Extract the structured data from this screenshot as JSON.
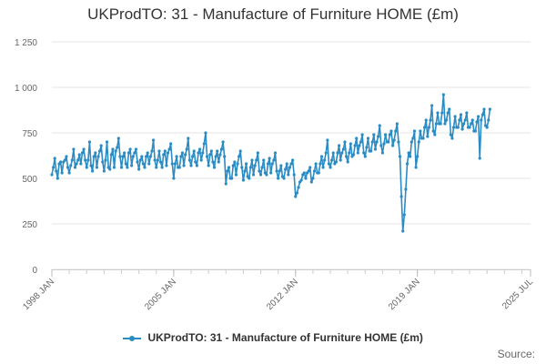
{
  "chart_data": {
    "type": "line",
    "title": "UKProdTO: 31 - Manufacture of Furniture HOME (£m)",
    "xlabel": "",
    "ylabel": "",
    "x_tick_labels": [
      "1998 JAN",
      "2005 JAN",
      "2012 JAN",
      "2019 JAN",
      "2025 JUL"
    ],
    "y_tick_labels": [
      "0",
      "250",
      "500",
      "750",
      "1 000",
      "1 250"
    ],
    "x_range": [
      "1998-01",
      "2025-07"
    ],
    "ylim": [
      0,
      1250
    ],
    "y_ticks": [
      0,
      250,
      500,
      750,
      1000,
      1250
    ],
    "grid": true,
    "legend": "bottom-center",
    "series_color": "#2b8cc4",
    "series": [
      {
        "name": "UKProdTO: 31 - Manufacture of Furniture HOME (£m)",
        "start": "1998-01",
        "frequency": "monthly",
        "values": [
          520,
          560,
          610,
          540,
          500,
          580,
          590,
          530,
          590,
          600,
          620,
          560,
          530,
          570,
          600,
          660,
          560,
          580,
          600,
          630,
          580,
          640,
          660,
          600,
          560,
          600,
          700,
          570,
          540,
          620,
          640,
          560,
          620,
          650,
          680,
          590,
          540,
          600,
          700,
          560,
          550,
          630,
          660,
          560,
          650,
          670,
          720,
          620,
          560,
          620,
          640,
          580,
          560,
          640,
          660,
          570,
          620,
          640,
          660,
          590,
          550,
          600,
          620,
          580,
          560,
          620,
          640,
          580,
          620,
          650,
          710,
          600,
          560,
          600,
          650,
          590,
          560,
          630,
          650,
          570,
          640,
          660,
          690,
          580,
          500,
          580,
          620,
          560,
          560,
          620,
          640,
          570,
          630,
          660,
          720,
          600,
          570,
          620,
          650,
          590,
          570,
          640,
          660,
          600,
          640,
          690,
          750,
          620,
          570,
          630,
          650,
          590,
          560,
          620,
          650,
          590,
          630,
          660,
          700,
          620,
          470,
          540,
          560,
          500,
          500,
          570,
          590,
          520,
          580,
          620,
          650,
          560,
          490,
          540,
          580,
          510,
          500,
          560,
          600,
          520,
          570,
          600,
          640,
          540,
          520,
          560,
          600,
          530,
          520,
          580,
          610,
          530,
          580,
          600,
          640,
          540,
          500,
          540,
          570,
          510,
          500,
          550,
          580,
          520,
          560,
          580,
          600,
          520,
          400,
          420,
          450,
          480,
          490,
          520,
          530,
          500,
          530,
          540,
          560,
          480,
          500,
          540,
          580,
          530,
          530,
          580,
          620,
          560,
          600,
          640,
          710,
          580,
          560,
          600,
          640,
          580,
          590,
          640,
          680,
          600,
          640,
          660,
          700,
          620,
          590,
          640,
          690,
          620,
          630,
          680,
          720,
          640,
          680,
          700,
          740,
          640,
          620,
          670,
          720,
          650,
          650,
          700,
          740,
          660,
          700,
          730,
          790,
          680,
          640,
          690,
          740,
          700,
          700,
          740,
          760,
          680,
          710,
          760,
          800,
          700,
          620,
          400,
          210,
          300,
          440,
          580,
          640,
          620,
          700,
          720,
          760,
          560,
          620,
          700,
          760,
          720,
          720,
          780,
          820,
          730,
          780,
          820,
          900,
          760,
          740,
          800,
          860,
          800,
          800,
          860,
          960,
          800,
          820,
          860,
          880,
          740,
          720,
          780,
          840,
          780,
          780,
          820,
          850,
          770,
          800,
          820,
          860,
          780,
          780,
          800,
          820,
          760,
          760,
          810,
          840,
          610,
          820,
          850,
          880,
          790,
          780,
          820,
          880
        ]
      }
    ]
  },
  "source_label": "Source:"
}
